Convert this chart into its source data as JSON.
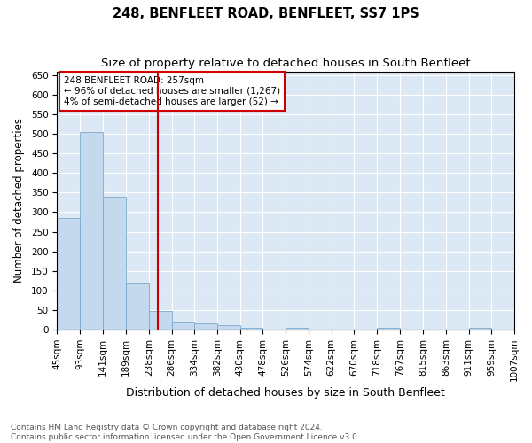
{
  "title": "248, BENFLEET ROAD, BENFLEET, SS7 1PS",
  "subtitle": "Size of property relative to detached houses in South Benfleet",
  "xlabel": "Distribution of detached houses by size in South Benfleet",
  "ylabel": "Number of detached properties",
  "footnote1": "Contains HM Land Registry data © Crown copyright and database right 2024.",
  "footnote2": "Contains public sector information licensed under the Open Government Licence v3.0.",
  "annotation_line1": "248 BENFLEET ROAD: 257sqm",
  "annotation_line2": "← 96% of detached houses are smaller (1,267)",
  "annotation_line3": "4% of semi-detached houses are larger (52) →",
  "bar_color": "#c5d9ee",
  "bar_edge_color": "#7eaacb",
  "ref_line_color": "#cc0000",
  "ref_line_x": 257,
  "fig_bg_color": "#ffffff",
  "plot_bg_color": "#dce9f5",
  "bin_edges": [
    45,
    93,
    141,
    189,
    238,
    286,
    334,
    382,
    430,
    478,
    526,
    574,
    622,
    670,
    718,
    767,
    815,
    863,
    911,
    959,
    1007
  ],
  "bar_heights": [
    285,
    505,
    340,
    120,
    48,
    20,
    15,
    10,
    5,
    0,
    5,
    0,
    0,
    0,
    5,
    0,
    0,
    0,
    5,
    0
  ],
  "ylim": [
    0,
    660
  ],
  "yticks": [
    0,
    50,
    100,
    150,
    200,
    250,
    300,
    350,
    400,
    450,
    500,
    550,
    600,
    650
  ],
  "title_fontsize": 10.5,
  "subtitle_fontsize": 9.5,
  "xlabel_fontsize": 9,
  "ylabel_fontsize": 8.5,
  "tick_fontsize": 7.5,
  "annotation_fontsize": 7.5,
  "footnote_fontsize": 6.5
}
